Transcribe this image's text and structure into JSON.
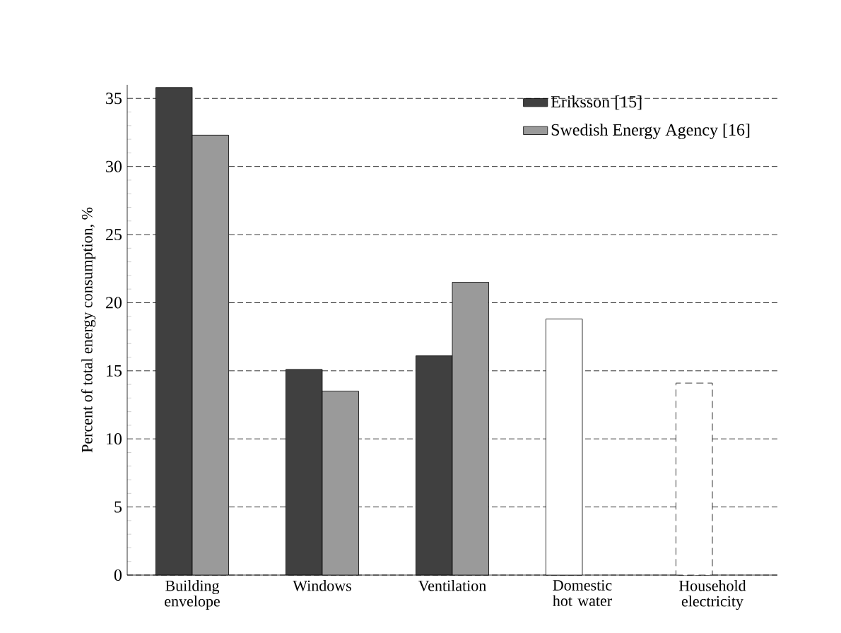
{
  "chart_data": {
    "type": "bar",
    "ylabel": "Percent of total energy consumption, %",
    "categories": [
      "Building envelope",
      "Windows",
      "Ventilation",
      "Domestic hot water",
      "Household electricity"
    ],
    "series": [
      {
        "name": "Eriksson [15]",
        "color": "#404040",
        "values": [
          35.8,
          15.1,
          16.1,
          null,
          null
        ]
      },
      {
        "name": "Swedish Energy Agency [16]",
        "color": "#9a9a9a",
        "values": [
          32.3,
          13.5,
          21.5,
          null,
          null
        ]
      },
      {
        "color": "#ffffff",
        "values": [
          null,
          null,
          null,
          18.8,
          null
        ]
      },
      {
        "color": "#ffffff",
        "line_style": "dashed",
        "values": [
          null,
          null,
          null,
          null,
          14.1
        ]
      }
    ],
    "ylim": [
      0,
      36
    ],
    "yticks": [
      0,
      5,
      10,
      15,
      20,
      25,
      30,
      35
    ],
    "grid": "y",
    "legend": "top right"
  }
}
